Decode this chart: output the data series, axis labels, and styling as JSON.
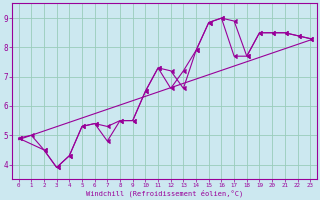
{
  "xlabel": "Windchill (Refroidissement éolien,°C)",
  "background_color": "#cce8f0",
  "line_color": "#990099",
  "xlim": [
    -0.5,
    23.5
  ],
  "ylim": [
    3.5,
    9.5
  ],
  "xticks": [
    0,
    1,
    2,
    3,
    4,
    5,
    6,
    7,
    8,
    9,
    10,
    11,
    12,
    13,
    14,
    15,
    16,
    17,
    18,
    19,
    20,
    21,
    22,
    23
  ],
  "yticks": [
    4,
    5,
    6,
    7,
    8,
    9
  ],
  "grid_color": "#99ccbb",
  "series1_x": [
    0,
    1,
    2,
    3,
    4,
    5,
    6,
    7,
    8,
    9,
    10,
    11,
    12,
    13,
    14,
    15,
    16,
    17,
    18,
    19,
    20,
    21,
    22,
    23
  ],
  "series1_y": [
    4.9,
    5.0,
    4.5,
    3.9,
    4.3,
    5.3,
    5.4,
    5.3,
    5.5,
    5.5,
    6.5,
    7.3,
    7.2,
    6.6,
    7.9,
    8.85,
    9.0,
    8.9,
    7.7,
    8.5,
    8.5,
    8.5,
    8.4,
    8.3
  ],
  "series2_x": [
    0,
    2,
    3,
    4,
    5,
    6,
    7,
    8,
    9,
    10,
    11,
    12,
    13,
    14,
    15,
    16,
    17,
    18,
    19,
    20,
    21,
    22,
    23
  ],
  "series2_y": [
    4.9,
    4.5,
    3.9,
    4.3,
    5.3,
    5.4,
    4.8,
    5.5,
    5.5,
    6.5,
    7.3,
    6.6,
    7.2,
    7.9,
    8.85,
    9.0,
    7.7,
    7.7,
    8.5,
    8.5,
    8.5,
    8.4,
    8.3
  ],
  "trend_x": [
    0,
    23
  ],
  "trend_y": [
    4.85,
    8.25
  ]
}
